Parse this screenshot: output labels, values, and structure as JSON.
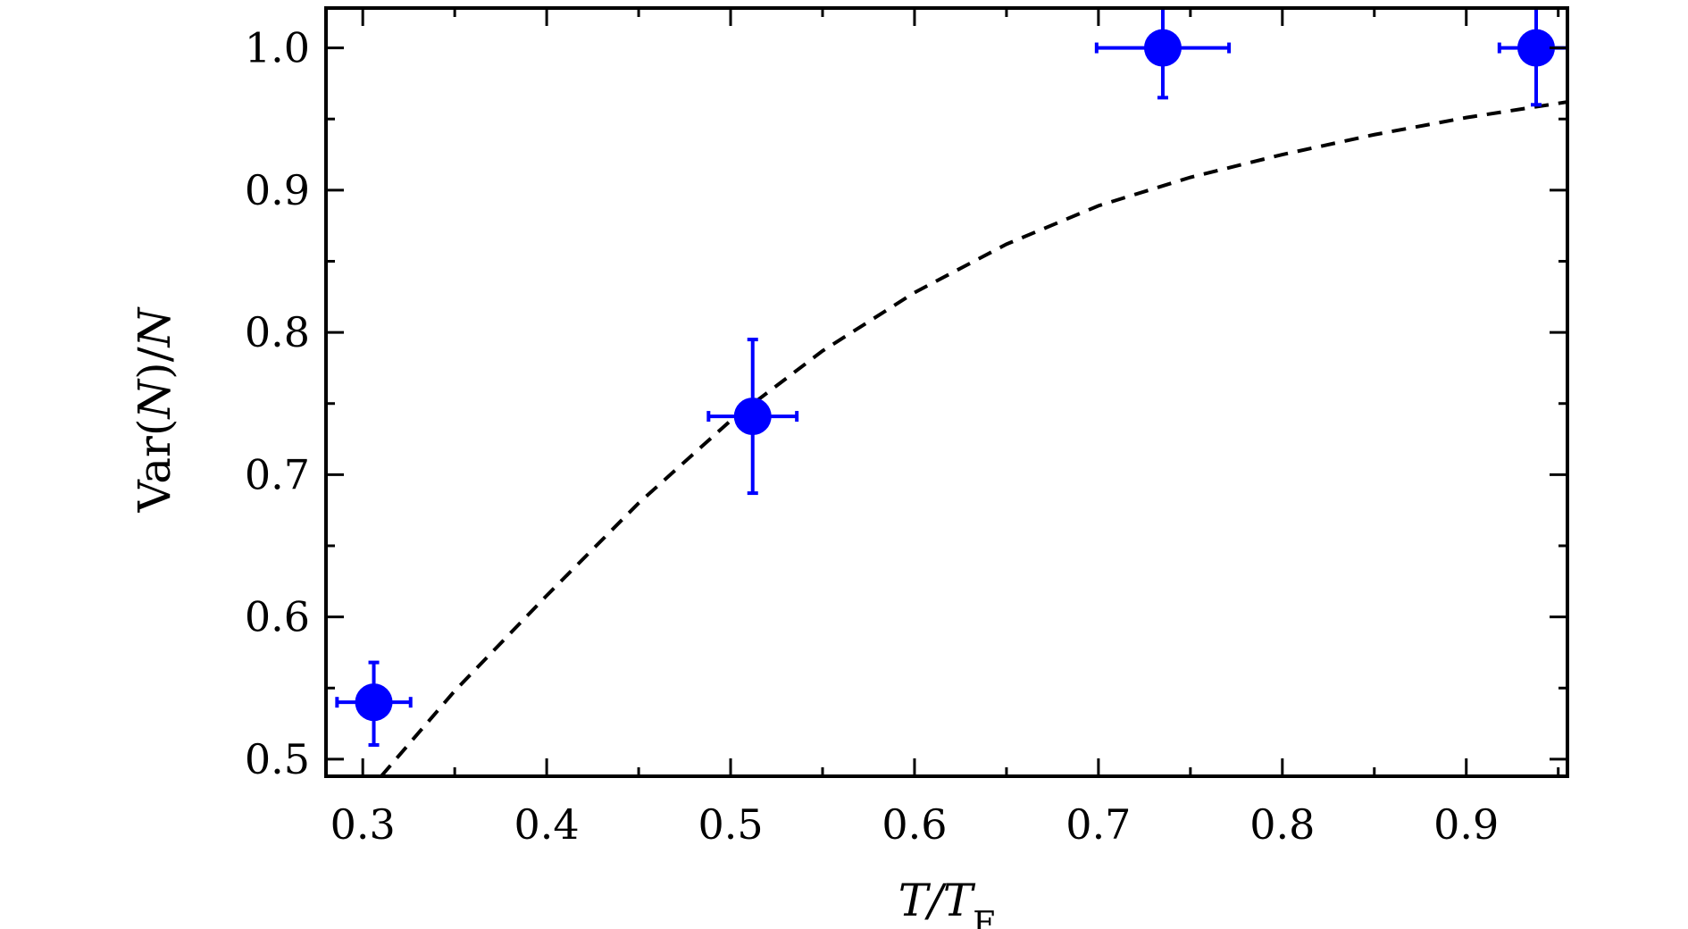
{
  "chart_data": {
    "type": "scatter",
    "xlabel": {
      "main": "T/T",
      "sub": "F"
    },
    "ylabel": {
      "prefix": "Var(",
      "var": "N",
      "mid": ")/",
      "var2": "N"
    },
    "xlim": [
      0.28,
      0.955
    ],
    "ylim": [
      0.488,
      1.028
    ],
    "xticks": [
      0.3,
      0.4,
      0.5,
      0.6,
      0.7,
      0.8,
      0.9
    ],
    "xtick_labels": [
      "0.3",
      "0.4",
      "0.5",
      "0.6",
      "0.7",
      "0.8",
      "0.9"
    ],
    "yticks": [
      0.5,
      0.6,
      0.7,
      0.8,
      0.9,
      1.0
    ],
    "ytick_labels": [
      "0.5",
      "0.6",
      "0.7",
      "0.8",
      "0.9",
      "1.0"
    ],
    "grid": false,
    "series": [
      {
        "kind": "points-with-errorbars",
        "color": "#0000ff",
        "points": [
          {
            "x": 0.306,
            "y": 0.54,
            "xerr": 0.02,
            "yerr_low": 0.03,
            "yerr_high": 0.028
          },
          {
            "x": 0.512,
            "y": 0.741,
            "xerr": 0.024,
            "yerr_low": 0.054,
            "yerr_high": 0.054
          },
          {
            "x": 0.735,
            "y": 1.0,
            "xerr": 0.036,
            "yerr_low": 0.035,
            "yerr_high": 0.03
          },
          {
            "x": 0.938,
            "y": 1.0,
            "xerr": 0.02,
            "yerr_low": 0.04,
            "yerr_high": 0.03
          }
        ]
      },
      {
        "kind": "dashed-curve",
        "color": "#000000",
        "x": [
          0.31,
          0.33,
          0.35,
          0.4,
          0.45,
          0.5,
          0.55,
          0.6,
          0.65,
          0.7,
          0.75,
          0.8,
          0.85,
          0.9,
          0.955
        ],
        "y": [
          0.488,
          0.518,
          0.548,
          0.615,
          0.68,
          0.738,
          0.787,
          0.828,
          0.862,
          0.889,
          0.909,
          0.925,
          0.939,
          0.951,
          0.962
        ]
      }
    ]
  }
}
